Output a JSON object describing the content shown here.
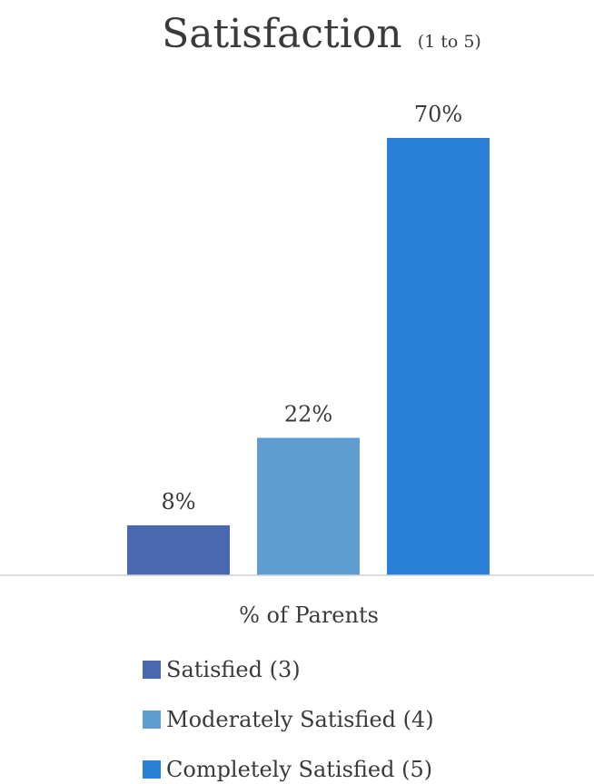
{
  "chart_data": {
    "type": "bar",
    "title": "Satisfaction",
    "subtitle": "(1 to 5)",
    "xlabel": "% of Parents",
    "ylabel": "",
    "ylim": [
      0,
      70
    ],
    "grid": false,
    "legend_position": "bottom",
    "value_suffix": "%",
    "series": [
      {
        "name": "Satisfied (3)",
        "values": [
          8
        ],
        "color": "#4a68b0"
      },
      {
        "name": "Moderately Satisfied (4)",
        "values": [
          22
        ],
        "color": "#5f9dd0"
      },
      {
        "name": "Completely Satisfied (5)",
        "values": [
          70
        ],
        "color": "#2a7fd6"
      }
    ],
    "axis_color": "#d0d0d0"
  }
}
